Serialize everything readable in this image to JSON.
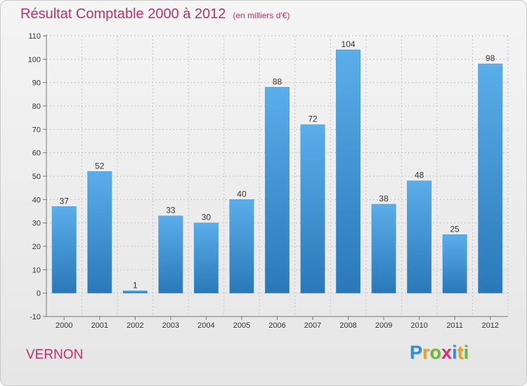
{
  "header": {
    "title": "Résultat Comptable 2000 à 2012",
    "unit": "(en milliers d'€)"
  },
  "footer": {
    "place": "VERNON",
    "logo": {
      "letters": [
        "P",
        "r",
        "o",
        "x",
        "i",
        "t",
        "i"
      ],
      "colors": [
        "#2e8fd6",
        "#e8a321",
        "#6fb83a",
        "#d92f7a",
        "#2e8fd6",
        "#e8a321",
        "#6fb83a"
      ]
    }
  },
  "chart_data": {
    "type": "bar",
    "categories": [
      "2000",
      "2001",
      "2002",
      "2003",
      "2004",
      "2005",
      "2006",
      "2007",
      "2008",
      "2009",
      "2010",
      "2011",
      "2012"
    ],
    "values": [
      37,
      52,
      1,
      33,
      30,
      40,
      88,
      72,
      104,
      38,
      48,
      25,
      98
    ],
    "title": "Résultat Comptable 2000 à 2012",
    "ylim": [
      -10,
      110
    ],
    "yticks": [
      -10,
      0,
      10,
      20,
      30,
      40,
      50,
      60,
      70,
      80,
      90,
      100,
      110
    ],
    "grid": true,
    "bar_color_top": "#5aaeea",
    "bar_color_bottom": "#2a78b8"
  }
}
